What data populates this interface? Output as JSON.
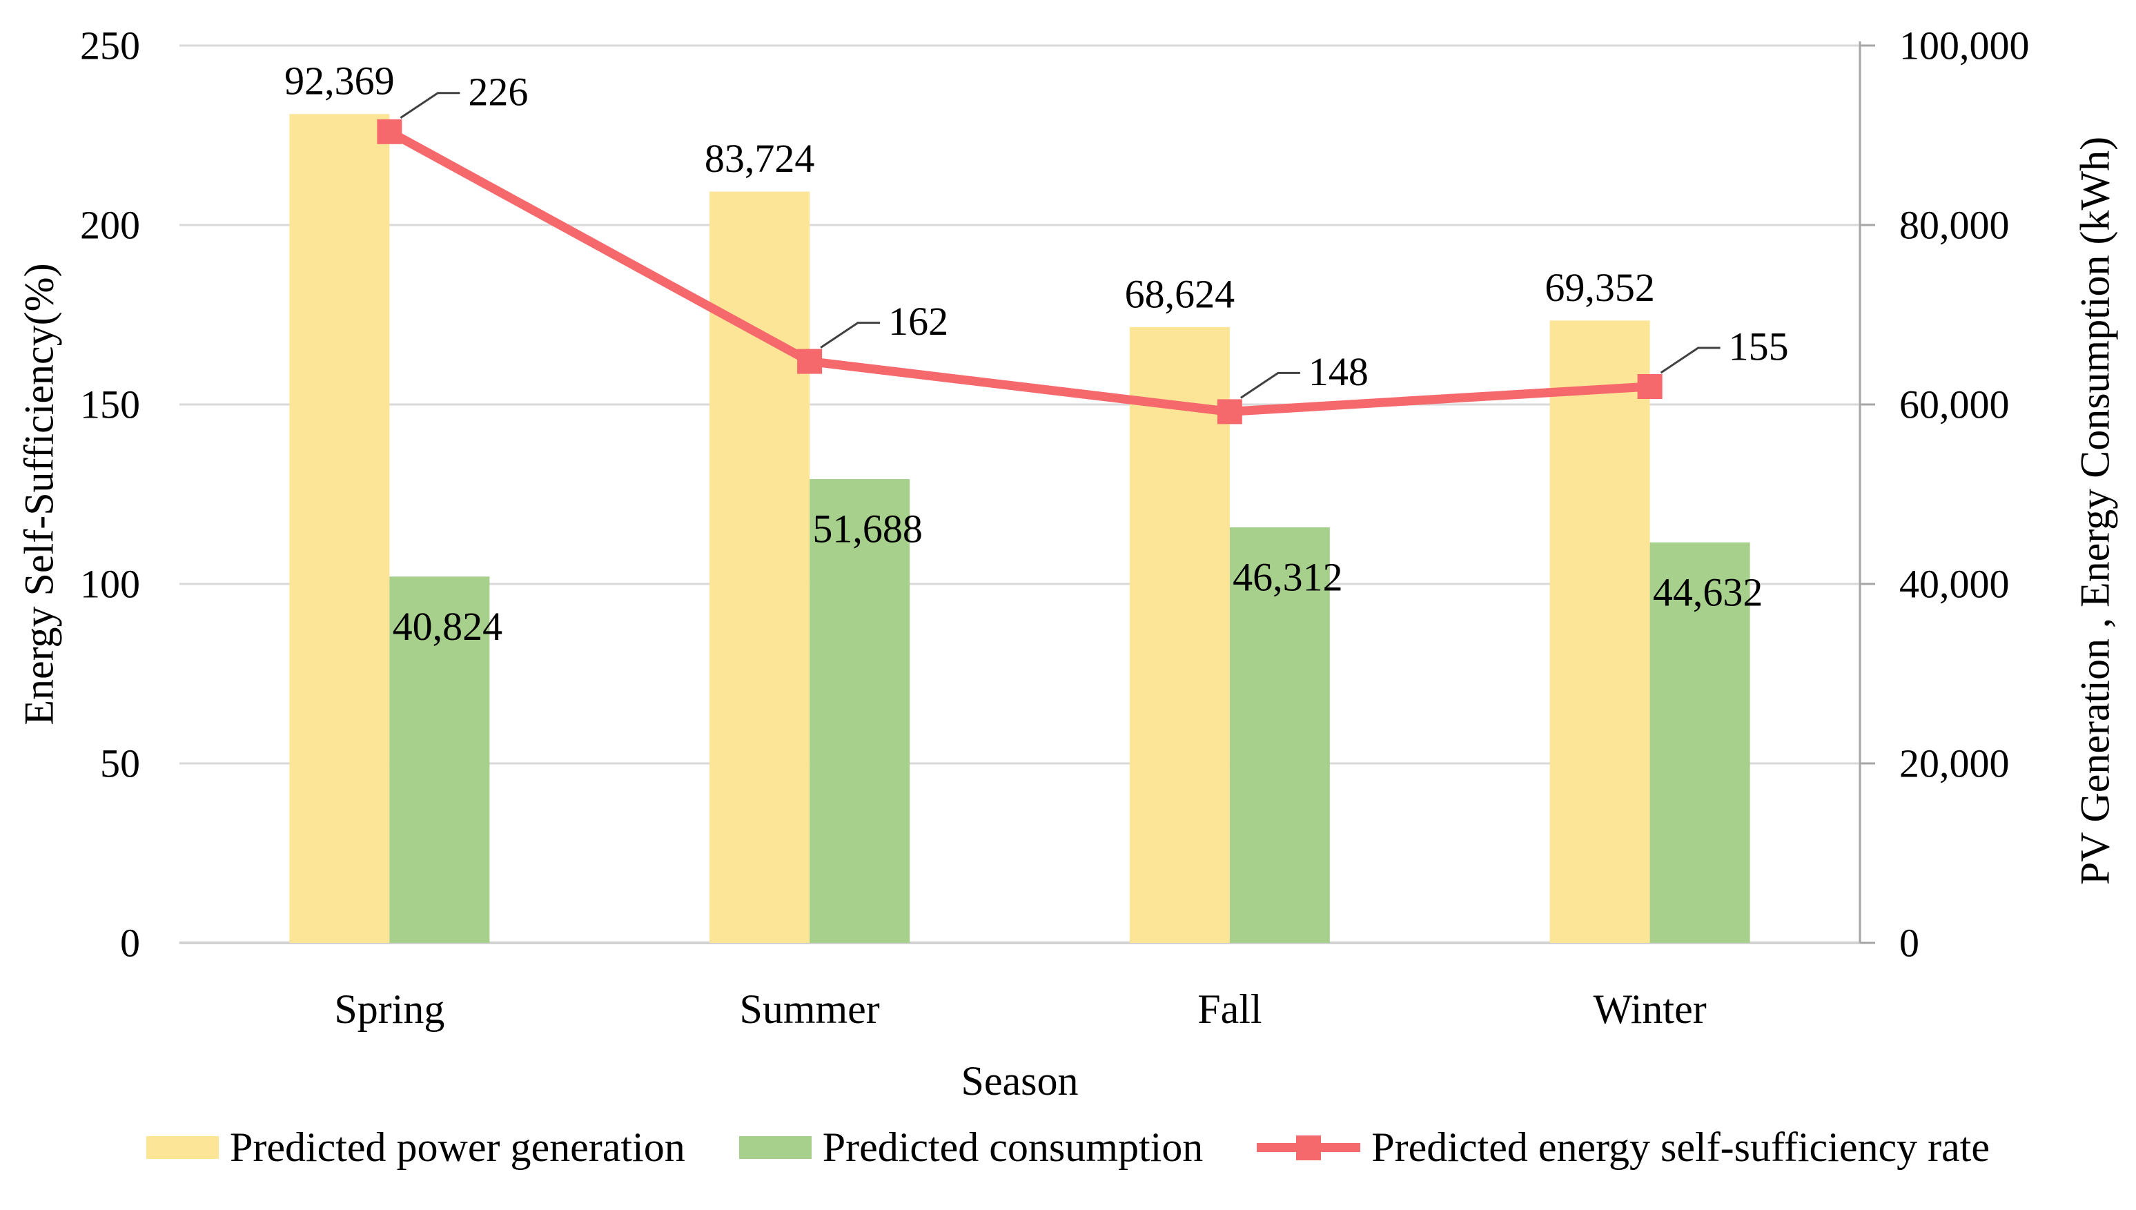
{
  "chart_data": {
    "type": "combo-bar-line",
    "categories": [
      "Spring",
      "Summer",
      "Fall",
      "Winter"
    ],
    "x_axis": {
      "title": "Season"
    },
    "left_axis": {
      "title": "Energy Self-Sufficiency(%)",
      "min": 0,
      "max": 250,
      "step": 50,
      "tick_labels": [
        "0",
        "50",
        "100",
        "150",
        "200",
        "250"
      ]
    },
    "right_axis": {
      "title": "PV Generation , Energy Consumption (kWh)",
      "min": 0,
      "max": 100000,
      "step": 20000,
      "tick_labels": [
        "0",
        "20,000",
        "40,000",
        "60,000",
        "80,000",
        "100,000"
      ]
    },
    "grid": true,
    "legend_position": "bottom",
    "series": [
      {
        "name": "Predicted power generation",
        "type": "bar",
        "axis": "right",
        "color": "#FCE596",
        "values": [
          92369,
          83724,
          68624,
          69352
        ],
        "value_labels": [
          "92,369",
          "83,724",
          "68,624",
          "69,352"
        ]
      },
      {
        "name": "Predicted consumption",
        "type": "bar",
        "axis": "right",
        "color": "#A8D08D",
        "values": [
          40824,
          51688,
          46312,
          44632
        ],
        "value_labels": [
          "40,824",
          "51,688",
          "46,312",
          "44,632"
        ]
      },
      {
        "name": "Predicted energy self-sufficiency rate",
        "type": "line",
        "axis": "left",
        "color": "#F5696D",
        "marker": "square",
        "values": [
          226,
          162,
          148,
          155
        ],
        "value_labels": [
          "226",
          "162",
          "148",
          "155"
        ]
      }
    ]
  },
  "colors": {
    "background": "#FFFFFF",
    "gridline": "#D9D9D9",
    "axis_line": "#A6A6A6",
    "baseline": "#D2D2D2",
    "callout": "#404040",
    "text": "#000000"
  }
}
